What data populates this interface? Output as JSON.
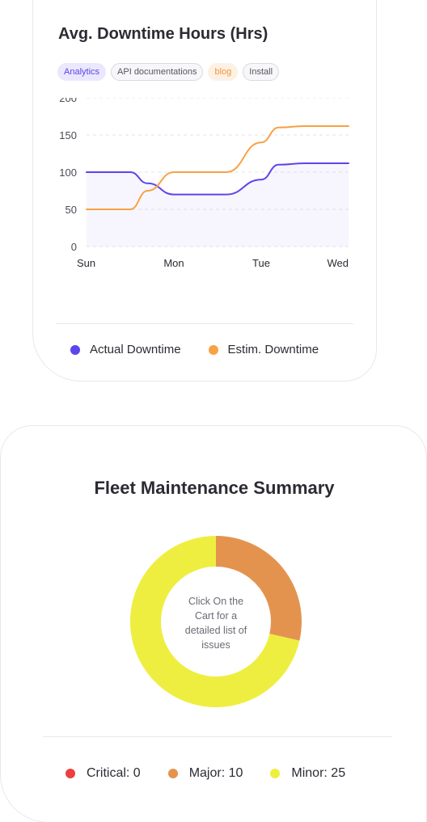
{
  "downtime_card": {
    "title": "Avg. Downtime Hours (Hrs)",
    "tags": [
      {
        "label": "Analytics",
        "style": "analytics"
      },
      {
        "label": "API documentations",
        "style": "default"
      },
      {
        "label": "blog",
        "style": "blog"
      },
      {
        "label": "Install",
        "style": "default"
      }
    ],
    "legend": [
      {
        "label": "Actual Downtime",
        "color": "#5b45ec"
      },
      {
        "label": "Estim. Downtime",
        "color": "#f8a145"
      }
    ]
  },
  "fleet_card": {
    "title": "Fleet Maintenance Summary",
    "center_text": "Click On the Cart for a detailed list of issues",
    "legend": [
      {
        "label": "Critical: 0",
        "color": "#ea4040"
      },
      {
        "label": "Major: 10",
        "color": "#e4934e"
      },
      {
        "label": "Minor: 25",
        "color": "#eeee40"
      }
    ]
  },
  "chart_data": [
    {
      "type": "line",
      "title": "Avg. Downtime Hours (Hrs)",
      "categories": [
        "Sun",
        "Mon",
        "Tue",
        "Wed"
      ],
      "x": [
        0,
        0.3,
        0.5,
        0.7,
        1,
        1.3,
        1.6,
        2,
        2.2,
        2.5,
        3
      ],
      "series": [
        {
          "name": "Actual Downtime",
          "color": "#5b45ec",
          "fill": true,
          "values": [
            100,
            100,
            100,
            85,
            70,
            70,
            70,
            90,
            110,
            112,
            112
          ]
        },
        {
          "name": "Estim. Downtime",
          "color": "#f8a145",
          "fill": false,
          "values": [
            50,
            50,
            50,
            75,
            100,
            100,
            100,
            140,
            160,
            162,
            162
          ]
        }
      ],
      "yticks": [
        0,
        50,
        100,
        150,
        200
      ],
      "ylim": [
        0,
        200
      ],
      "grid": true,
      "legend": "bottom"
    },
    {
      "type": "pie",
      "title": "Fleet Maintenance Summary",
      "categories": [
        "Critical",
        "Major",
        "Minor"
      ],
      "values": [
        0,
        10,
        25
      ],
      "colors": [
        "#ea4040",
        "#e4934e",
        "#eeee40"
      ],
      "legend": "bottom"
    }
  ]
}
